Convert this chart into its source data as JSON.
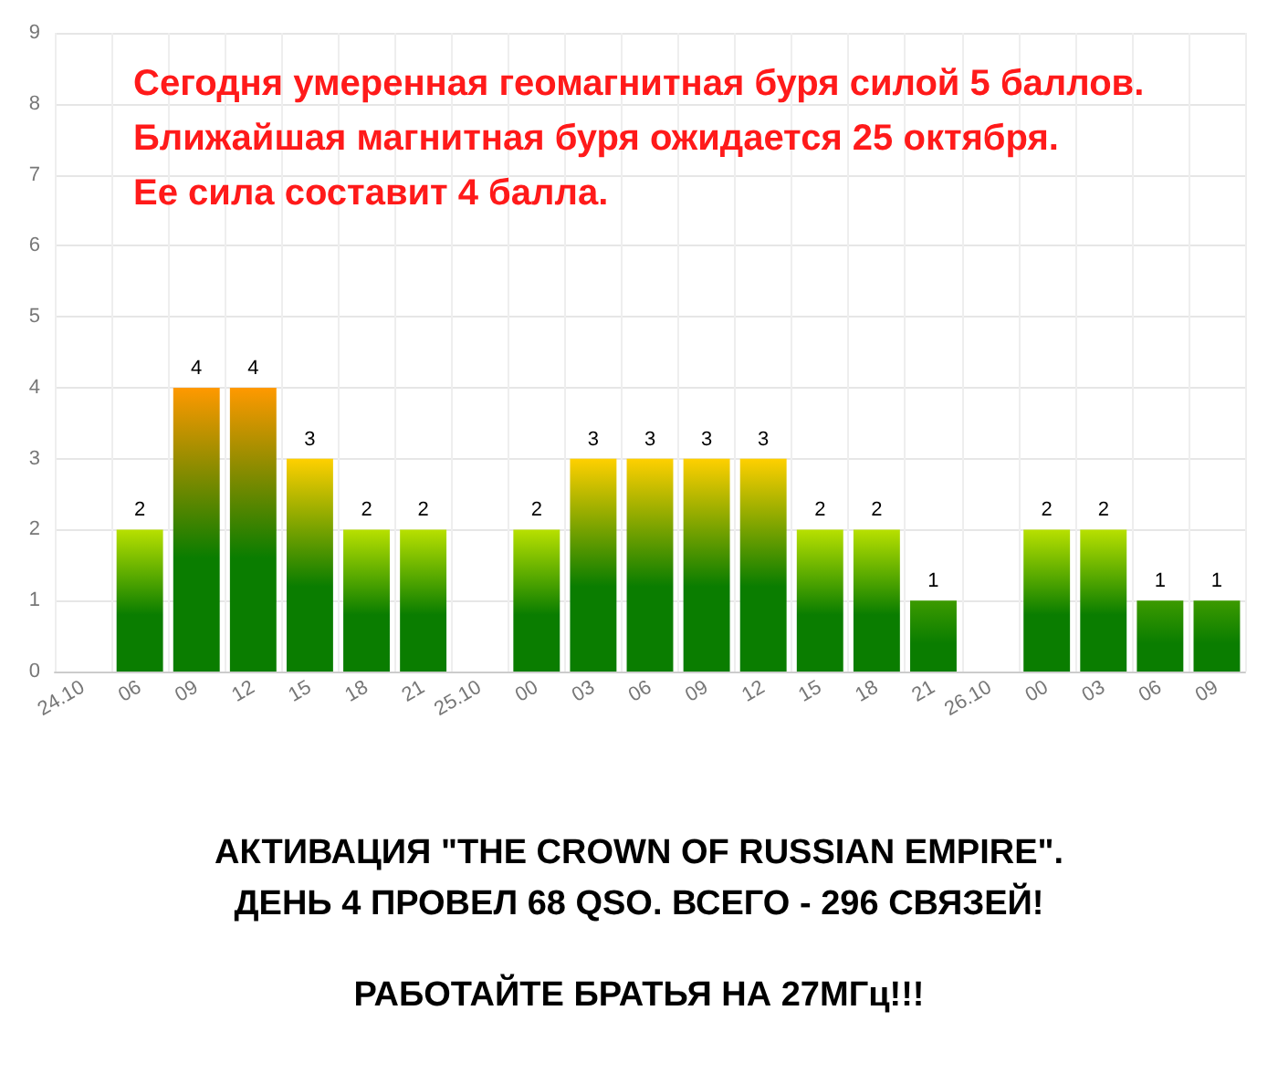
{
  "chart_data": {
    "type": "bar",
    "title": "Сегодня умеренная геомагнитная буря силой 5 баллов.\nБлижайшая магнитная буря ожидается 25 октября.\nЕе сила составит 4 балла.",
    "categories": [
      "24.10",
      "06",
      "09",
      "12",
      "15",
      "18",
      "21",
      "25.10",
      "00",
      "03",
      "06",
      "09",
      "12",
      "15",
      "18",
      "21",
      "26.10",
      "00",
      "03",
      "06",
      "09"
    ],
    "values": [
      0,
      2,
      4,
      4,
      3,
      2,
      2,
      0,
      2,
      3,
      3,
      3,
      3,
      2,
      2,
      1,
      0,
      2,
      2,
      1,
      1
    ],
    "value_labels": [
      null,
      "2",
      "4",
      "4",
      "3",
      "2",
      "2",
      null,
      "2",
      "3",
      "3",
      "3",
      "3",
      "2",
      "2",
      "1",
      null,
      "2",
      "2",
      "1",
      "1"
    ],
    "color": "#0a7d00",
    "colors": [
      "#0a7d00",
      "#b8e000",
      "#ff9900",
      "#ff9900",
      "#ffd000",
      "#b8e000",
      "#b8e000",
      "#0a7d00",
      "#b8e000",
      "#ffd000",
      "#ffd000",
      "#ffd000",
      "#ffd000",
      "#b8e000",
      "#b8e000",
      "#3c9a00",
      "#0a7d00",
      "#b8e000",
      "#b8e000",
      "#3c9a00",
      "#3c9a00"
    ],
    "ylim": [
      0,
      9
    ],
    "yticks": [
      0,
      1,
      2,
      3,
      4,
      5,
      6,
      7,
      8,
      9
    ],
    "grid": true,
    "annotations": [
      "АКТИВАЦИЯ \"THE CROWN OF RUSSIAN EMPIRE\".",
      "ДЕНЬ 4 ПРОВЕЛ 68 QSO. ВСЕГО - 296 СВЯЗЕЙ!",
      "РАБОТАЙТЕ БРАТЬЯ НА 27МГц!!!"
    ]
  }
}
